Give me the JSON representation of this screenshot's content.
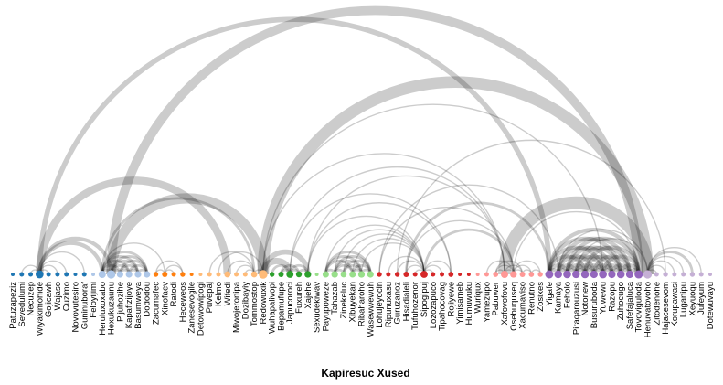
{
  "title": "Kapiresuc Xused",
  "nodes": [
    {
      "label": "Patuzapeziz",
      "group": 0
    },
    {
      "label": "Sevedulumi",
      "group": 0
    },
    {
      "label": "Necuzep",
      "group": 0
    },
    {
      "label": "Wiyakimohide",
      "group": 0
    },
    {
      "label": "Gojicawh",
      "group": 0
    },
    {
      "label": "Wajaso",
      "group": 0
    },
    {
      "label": "Cuzimo",
      "group": 0
    },
    {
      "label": "Novovutesiro",
      "group": 0
    },
    {
      "label": "Guninuboraf",
      "group": 0
    },
    {
      "label": "Feloyijimi",
      "group": 1
    },
    {
      "label": "Heruluxoxabo",
      "group": 1
    },
    {
      "label": "Hexukuzaunu",
      "group": 1
    },
    {
      "label": "Pijuhozihe",
      "group": 1
    },
    {
      "label": "Kapafizijoye",
      "group": 1
    },
    {
      "label": "Basumweya",
      "group": 1
    },
    {
      "label": "Dododou",
      "group": 1
    },
    {
      "label": "Zacumafec",
      "group": 2
    },
    {
      "label": "Xinofaev",
      "group": 2
    },
    {
      "label": "Ratodi",
      "group": 2
    },
    {
      "label": "Heceweos",
      "group": 2
    },
    {
      "label": "Zanesevogile",
      "group": 2
    },
    {
      "label": "Detowowipogi",
      "group": 3
    },
    {
      "label": "Puvepaj",
      "group": 3
    },
    {
      "label": "Kelmo",
      "group": 3
    },
    {
      "label": "Wifedi",
      "group": 3
    },
    {
      "label": "Miwojeronipa",
      "group": 3
    },
    {
      "label": "Dozibayiy",
      "group": 3
    },
    {
      "label": "Tommostop",
      "group": 3
    },
    {
      "label": "Redowuxik",
      "group": 3
    },
    {
      "label": "Wuhapalivopi",
      "group": 4
    },
    {
      "label": "Bepamufupe",
      "group": 4
    },
    {
      "label": "Japucoroci",
      "group": 4
    },
    {
      "label": "Fuxureh",
      "group": 4
    },
    {
      "label": "Xajehe",
      "group": 4
    },
    {
      "label": "Sexudekiwav",
      "group": 5
    },
    {
      "label": "Payupoweze",
      "group": 5
    },
    {
      "label": "Tahazab",
      "group": 5
    },
    {
      "label": "Zinekeluc",
      "group": 5
    },
    {
      "label": "Xibuyekan",
      "group": 5
    },
    {
      "label": "Ribaharoho",
      "group": 5
    },
    {
      "label": "Wasewwewuh",
      "group": 5
    },
    {
      "label": "Lohujeyocin",
      "group": 6
    },
    {
      "label": "Ripunuxasu",
      "group": 6
    },
    {
      "label": "Guruzanoz",
      "group": 6
    },
    {
      "label": "Hisadialeli",
      "group": 6
    },
    {
      "label": "Tufuhozenor",
      "group": 6
    },
    {
      "label": "Sipogipuj",
      "group": 6
    },
    {
      "label": "Lozozapuco",
      "group": 6
    },
    {
      "label": "Tipahocovag",
      "group": 6
    },
    {
      "label": "Rojiyewe",
      "group": 6
    },
    {
      "label": "Yimisameb",
      "group": 6
    },
    {
      "label": "Humuwuku",
      "group": 6
    },
    {
      "label": "Wuriqux",
      "group": 7
    },
    {
      "label": "Yamezupo",
      "group": 7
    },
    {
      "label": "Pabuwer",
      "group": 7
    },
    {
      "label": "Xafovofovu",
      "group": 7
    },
    {
      "label": "Osebuquseq",
      "group": 7
    },
    {
      "label": "Xacumaviso",
      "group": 7
    },
    {
      "label": "Renutno",
      "group": 7
    },
    {
      "label": "Zosixes",
      "group": 7
    },
    {
      "label": "Yigafe",
      "group": 8
    },
    {
      "label": "Kamaya",
      "group": 8
    },
    {
      "label": "Feholo",
      "group": 8
    },
    {
      "label": "Piraqarouzusi",
      "group": 8
    },
    {
      "label": "Notonew",
      "group": 8
    },
    {
      "label": "Busuruboda",
      "group": 8
    },
    {
      "label": "Yuwewu",
      "group": 8
    },
    {
      "label": "Razopu",
      "group": 8
    },
    {
      "label": "Zuhocugo",
      "group": 8
    },
    {
      "label": "Safefajaluca",
      "group": 8
    },
    {
      "label": "Tovoviguloda",
      "group": 8
    },
    {
      "label": "Henuvatovoho",
      "group": 9
    },
    {
      "label": "Zitodenohe",
      "group": 9
    },
    {
      "label": "Hajacesevom",
      "group": 9
    },
    {
      "label": "Korupawasi",
      "group": 9
    },
    {
      "label": "Luganipu",
      "group": 9
    },
    {
      "label": "Xeyuoqu",
      "group": 9
    },
    {
      "label": "Jufeyum",
      "group": 9
    },
    {
      "label": "Dotewuvayu",
      "group": 9
    }
  ],
  "group_colors": [
    "#1f77b4",
    "#aec7e8",
    "#ff7f0e",
    "#ffbb78",
    "#2ca02c",
    "#98df8a",
    "#d62728",
    "#ff9896",
    "#9467bd",
    "#c5b0d5"
  ],
  "links": [
    [
      1,
      3,
      1
    ],
    [
      2,
      3,
      1
    ],
    [
      3,
      4,
      1
    ],
    [
      3,
      5,
      1
    ],
    [
      3,
      6,
      1
    ],
    [
      3,
      8,
      1
    ],
    [
      3,
      10,
      3
    ],
    [
      3,
      11,
      3
    ],
    [
      3,
      24,
      6
    ],
    [
      10,
      11,
      2
    ],
    [
      10,
      12,
      2
    ],
    [
      10,
      13,
      2
    ],
    [
      10,
      14,
      2
    ],
    [
      10,
      15,
      2
    ],
    [
      11,
      12,
      2
    ],
    [
      11,
      13,
      2
    ],
    [
      11,
      14,
      2
    ],
    [
      11,
      15,
      2
    ],
    [
      12,
      13,
      2
    ],
    [
      12,
      14,
      2
    ],
    [
      12,
      15,
      2
    ],
    [
      13,
      14,
      2
    ],
    [
      13,
      15,
      2
    ],
    [
      14,
      15,
      2
    ],
    [
      10,
      17,
      1
    ],
    [
      10,
      27,
      2
    ],
    [
      11,
      28,
      8
    ],
    [
      16,
      17,
      1
    ],
    [
      16,
      19,
      1
    ],
    [
      17,
      18,
      1
    ],
    [
      17,
      19,
      1
    ],
    [
      22,
      27,
      1
    ],
    [
      23,
      28,
      1
    ],
    [
      24,
      27,
      1
    ],
    [
      25,
      27,
      1
    ],
    [
      26,
      27,
      1
    ],
    [
      27,
      28,
      1
    ],
    [
      28,
      31,
      5
    ],
    [
      28,
      33,
      4
    ],
    [
      29,
      31,
      2
    ],
    [
      30,
      31,
      2
    ],
    [
      30,
      32,
      2
    ],
    [
      31,
      32,
      2
    ],
    [
      31,
      33,
      2
    ],
    [
      32,
      33,
      2
    ],
    [
      35,
      40,
      2
    ],
    [
      35,
      39,
      2
    ],
    [
      35,
      38,
      2
    ],
    [
      36,
      40,
      2
    ],
    [
      36,
      39,
      2
    ],
    [
      36,
      38,
      2
    ],
    [
      37,
      40,
      2
    ],
    [
      37,
      39,
      2
    ],
    [
      38,
      40,
      2
    ],
    [
      38,
      39,
      2
    ],
    [
      39,
      40,
      2
    ],
    [
      36,
      37,
      2
    ],
    [
      35,
      36,
      2
    ],
    [
      28,
      71,
      9
    ],
    [
      28,
      55,
      1
    ],
    [
      28,
      66,
      1
    ],
    [
      31,
      55,
      1
    ],
    [
      31,
      49,
      1
    ],
    [
      33,
      55,
      1
    ],
    [
      33,
      46,
      1
    ],
    [
      33,
      49,
      1
    ],
    [
      35,
      46,
      1
    ],
    [
      36,
      46,
      1
    ],
    [
      37,
      46,
      1
    ],
    [
      38,
      46,
      1
    ],
    [
      39,
      46,
      1
    ],
    [
      42,
      46,
      1
    ],
    [
      43,
      46,
      1
    ],
    [
      44,
      46,
      1
    ],
    [
      45,
      46,
      1
    ],
    [
      46,
      47,
      1
    ],
    [
      46,
      48,
      1
    ],
    [
      46,
      49,
      1
    ],
    [
      53,
      56,
      1
    ],
    [
      54,
      56,
      1
    ],
    [
      55,
      56,
      1
    ],
    [
      56,
      57,
      1
    ],
    [
      56,
      58,
      1
    ],
    [
      56,
      59,
      1
    ],
    [
      54,
      55,
      1
    ],
    [
      54,
      57,
      1
    ],
    [
      55,
      57,
      1
    ],
    [
      57,
      58,
      1
    ],
    [
      58,
      59,
      1
    ],
    [
      41,
      56,
      1
    ],
    [
      44,
      56,
      1
    ],
    [
      46,
      56,
      2
    ],
    [
      56,
      70,
      1
    ],
    [
      55,
      71,
      10
    ],
    [
      61,
      71,
      1
    ],
    [
      63,
      71,
      1
    ],
    [
      71,
      72,
      1
    ],
    [
      71,
      73,
      1
    ],
    [
      71,
      74,
      1
    ],
    [
      71,
      75,
      1
    ],
    [
      71,
      76,
      2
    ],
    [
      71,
      77,
      1
    ],
    [
      60,
      62,
      3
    ],
    [
      60,
      64,
      3
    ],
    [
      60,
      66,
      3
    ],
    [
      60,
      68,
      3
    ],
    [
      60,
      70,
      3
    ],
    [
      61,
      63,
      3
    ],
    [
      61,
      65,
      3
    ],
    [
      61,
      67,
      3
    ],
    [
      61,
      69,
      3
    ],
    [
      62,
      64,
      3
    ],
    [
      62,
      66,
      3
    ],
    [
      62,
      68,
      3
    ],
    [
      62,
      70,
      3
    ],
    [
      63,
      65,
      3
    ],
    [
      63,
      67,
      3
    ],
    [
      63,
      69,
      3
    ],
    [
      64,
      66,
      3
    ],
    [
      64,
      68,
      3
    ],
    [
      64,
      70,
      3
    ],
    [
      65,
      67,
      3
    ],
    [
      65,
      69,
      3
    ],
    [
      66,
      68,
      3
    ],
    [
      66,
      70,
      3
    ],
    [
      67,
      69,
      3
    ],
    [
      68,
      70,
      3
    ],
    [
      60,
      61,
      3
    ],
    [
      61,
      62,
      3
    ],
    [
      62,
      63,
      3
    ],
    [
      63,
      64,
      3
    ],
    [
      64,
      65,
      3
    ],
    [
      65,
      66,
      3
    ],
    [
      66,
      67,
      3
    ],
    [
      67,
      68,
      3
    ],
    [
      68,
      69,
      3
    ],
    [
      69,
      70,
      3
    ],
    [
      44,
      60,
      2
    ],
    [
      41,
      61,
      1
    ],
    [
      43,
      73,
      1
    ],
    [
      3,
      60,
      4
    ],
    [
      11,
      70,
      7
    ]
  ]
}
